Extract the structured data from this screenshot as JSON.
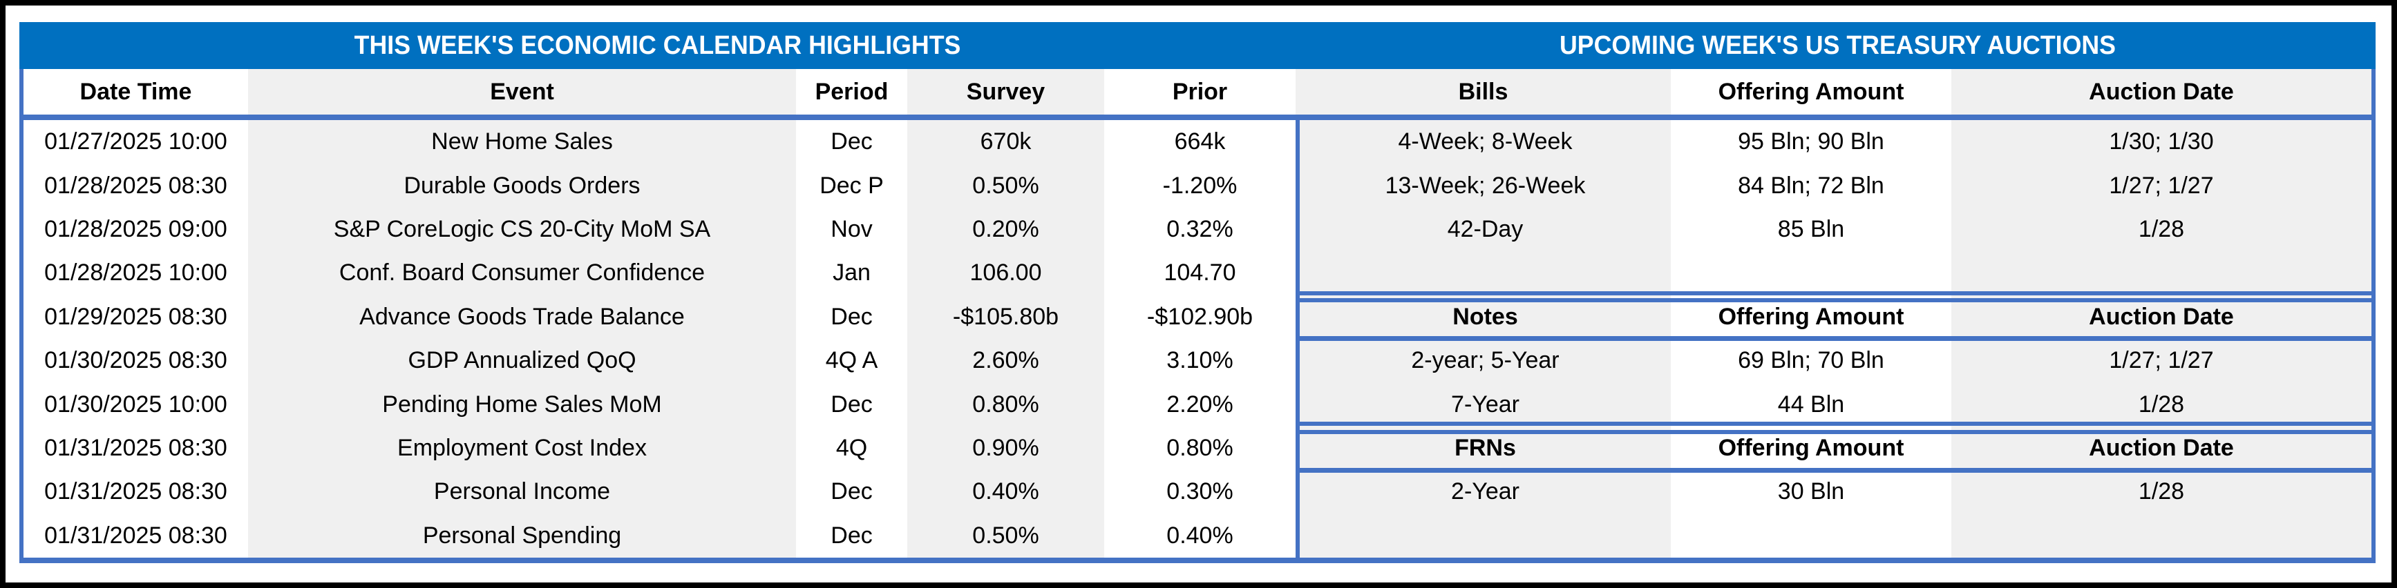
{
  "colors": {
    "brand_blue": "#0070C0",
    "rule_blue": "#4472C4",
    "stripe_grey": "#F0F0F0",
    "frame_black": "#000000"
  },
  "left": {
    "title": "THIS WEEK'S ECONOMIC CALENDAR HIGHLIGHTS",
    "columns": [
      "Date Time",
      "Event",
      "Period",
      "Survey",
      "Prior"
    ],
    "rows": [
      [
        "01/27/2025 10:00",
        "New Home Sales",
        "Dec",
        "670k",
        "664k"
      ],
      [
        "01/28/2025 08:30",
        "Durable Goods Orders",
        "Dec P",
        "0.50%",
        "-1.20%"
      ],
      [
        "01/28/2025 09:00",
        "S&P CoreLogic CS 20-City MoM SA",
        "Nov",
        "0.20%",
        "0.32%"
      ],
      [
        "01/28/2025 10:00",
        "Conf. Board Consumer Confidence",
        "Jan",
        "106.00",
        "104.70"
      ],
      [
        "01/29/2025 08:30",
        "Advance Goods Trade Balance",
        "Dec",
        "-$105.80b",
        "-$102.90b"
      ],
      [
        "01/30/2025 08:30",
        "GDP Annualized QoQ",
        "4Q A",
        "2.60%",
        "3.10%"
      ],
      [
        "01/30/2025 10:00",
        "Pending Home Sales MoM",
        "Dec",
        "0.80%",
        "2.20%"
      ],
      [
        "01/31/2025 08:30",
        "Employment Cost Index",
        "4Q",
        "0.90%",
        "0.80%"
      ],
      [
        "01/31/2025 08:30",
        "Personal Income",
        "Dec",
        "0.40%",
        "0.30%"
      ],
      [
        "01/31/2025 08:30",
        "Personal Spending",
        "Dec",
        "0.50%",
        "0.40%"
      ]
    ]
  },
  "right": {
    "title": "UPCOMING WEEK'S US TREASURY AUCTIONS",
    "columns": [
      "Bills",
      "Offering Amount",
      "Auction Date"
    ],
    "rows": [
      [
        "4-Week; 8-Week",
        "95 Bln; 90 Bln",
        "1/30; 1/30"
      ],
      [
        "13-Week; 26-Week",
        "84 Bln; 72 Bln",
        "1/27; 1/27"
      ],
      [
        "42-Day",
        "85 Bln",
        "1/28"
      ],
      [
        "",
        "",
        ""
      ],
      [
        "Notes",
        "Offering Amount",
        "Auction Date"
      ],
      [
        "2-year; 5-Year",
        "69 Bln; 70 Bln",
        "1/27; 1/27"
      ],
      [
        "7-Year",
        "44 Bln",
        "1/28"
      ],
      [
        "FRNs",
        "Offering Amount",
        "Auction Date"
      ],
      [
        "2-Year",
        "30 Bln",
        "1/28"
      ],
      [
        "",
        "",
        ""
      ]
    ]
  }
}
